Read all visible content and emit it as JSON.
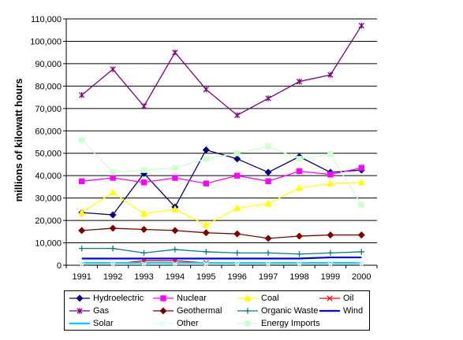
{
  "chart_data": {
    "type": "line",
    "title": "",
    "xlabel": "",
    "ylabel": "millions of kilowatt hours",
    "x": [
      "1991",
      "1992",
      "1993",
      "1994",
      "1995",
      "1996",
      "1997",
      "1998",
      "1999",
      "2000"
    ],
    "ylim": [
      0,
      110000
    ],
    "yticks": [
      0,
      10000,
      20000,
      30000,
      40000,
      50000,
      60000,
      70000,
      80000,
      90000,
      100000,
      110000
    ],
    "ytick_labels": [
      "0",
      "10,000",
      "20,000",
      "30,000",
      "40,000",
      "50,000",
      "60,000",
      "70,000",
      "80,000",
      "90,000",
      "100,000",
      "110,000"
    ],
    "grid": "horizontal",
    "legend_position": "bottom",
    "series": [
      {
        "name": "Hydroelectric",
        "color": "#000080",
        "marker": "diamond",
        "values": [
          23500,
          22500,
          41000,
          26000,
          51500,
          47500,
          41500,
          48500,
          41500,
          42500
        ]
      },
      {
        "name": "Nuclear",
        "color": "#ff00ff",
        "marker": "square",
        "values": [
          37500,
          39000,
          37000,
          39000,
          36500,
          40000,
          37500,
          42000,
          40500,
          43500
        ]
      },
      {
        "name": "Coal",
        "color": "#ffff00",
        "marker": "triangle",
        "values": [
          23500,
          32500,
          23000,
          25000,
          18000,
          25500,
          27500,
          34500,
          36500,
          37000
        ]
      },
      {
        "name": "Oil",
        "color": "#ff0000",
        "marker": "x",
        "values": [
          500,
          500,
          2000,
          2000,
          1000,
          500,
          500,
          500,
          500,
          500
        ]
      },
      {
        "name": "Gas",
        "color": "#800080",
        "marker": "star",
        "values": [
          76000,
          87500,
          71000,
          95000,
          78500,
          67000,
          74500,
          82000,
          85000,
          107000
        ]
      },
      {
        "name": "Geothermal",
        "color": "#800000",
        "marker": "diamond",
        "values": [
          15500,
          16500,
          16000,
          15500,
          14500,
          14000,
          12000,
          13000,
          13500,
          13500
        ]
      },
      {
        "name": "Organic Waste",
        "color": "#008080",
        "marker": "plus",
        "values": [
          7500,
          7500,
          5500,
          7000,
          6000,
          5500,
          5500,
          5000,
          5500,
          6000
        ]
      },
      {
        "name": "Wind",
        "color": "#0000ff",
        "marker": "none",
        "values": [
          3000,
          3000,
          3000,
          3000,
          3000,
          3000,
          3000,
          3000,
          3500,
          3500
        ]
      },
      {
        "name": "Solar",
        "color": "#00ccff",
        "marker": "none",
        "values": [
          1000,
          1000,
          1000,
          1000,
          1000,
          1000,
          1000,
          1000,
          1000,
          1000
        ]
      },
      {
        "name": "Other",
        "color": "#ccffff",
        "marker": "x",
        "values": [
          500,
          500,
          500,
          500,
          500,
          500,
          500,
          500,
          500,
          500
        ]
      },
      {
        "name": "Energy Imports",
        "color": "#ccffcc",
        "marker": "square",
        "values": [
          56000,
          41500,
          42500,
          43500,
          47500,
          50000,
          53000,
          47500,
          49500,
          27000
        ]
      }
    ]
  }
}
